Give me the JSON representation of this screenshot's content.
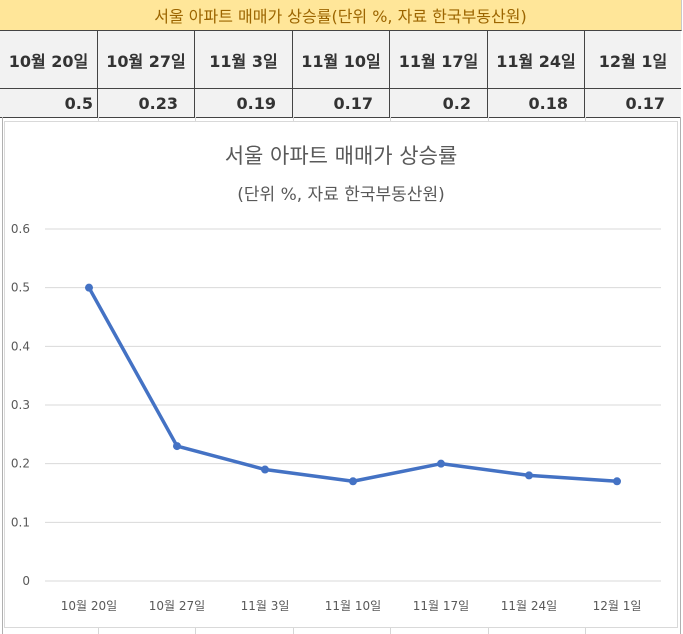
{
  "sheet": {
    "title": "서울 아파트 매매가 상승률(단위 %, 자료 한국부동산원)",
    "colors": {
      "title_bg": "#FFE699",
      "title_text": "#9C6500",
      "header_bg": "#F2F2F2"
    },
    "headers": [
      "10월 20일",
      "10월 27일",
      "11월 3일",
      "11월 10일",
      "11월 17일",
      "11월 24일",
      "12월 1일"
    ],
    "values": [
      "0.5",
      "0.23",
      "0.19",
      "0.17",
      "0.2",
      "0.18",
      "0.17"
    ]
  },
  "chart": {
    "title": "서울 아파트 매매가 상승률",
    "subtitle": "(단위 %, 자료 한국부동산원)",
    "y_ticks": [
      "0",
      "0.1",
      "0.2",
      "0.3",
      "0.4",
      "0.5",
      "0.6"
    ],
    "line_color": "#4472C4"
  },
  "chart_data": {
    "type": "line",
    "title": "서울 아파트 매매가 상승률",
    "subtitle": "(단위 %, 자료 한국부동산원)",
    "categories": [
      "10월 20일",
      "10월 27일",
      "11월 3일",
      "11월 10일",
      "11월 17일",
      "11월 24일",
      "12월 1일"
    ],
    "series": [
      {
        "name": "서울 아파트 매매가 상승률",
        "values": [
          0.5,
          0.23,
          0.19,
          0.17,
          0.2,
          0.18,
          0.17
        ],
        "color": "#4472C4",
        "markers": true
      }
    ],
    "xlabel": "",
    "ylabel": "",
    "ylim": [
      0,
      0.6
    ],
    "y_tick_step": 0.1,
    "grid": "horizontal",
    "legend": "none"
  }
}
